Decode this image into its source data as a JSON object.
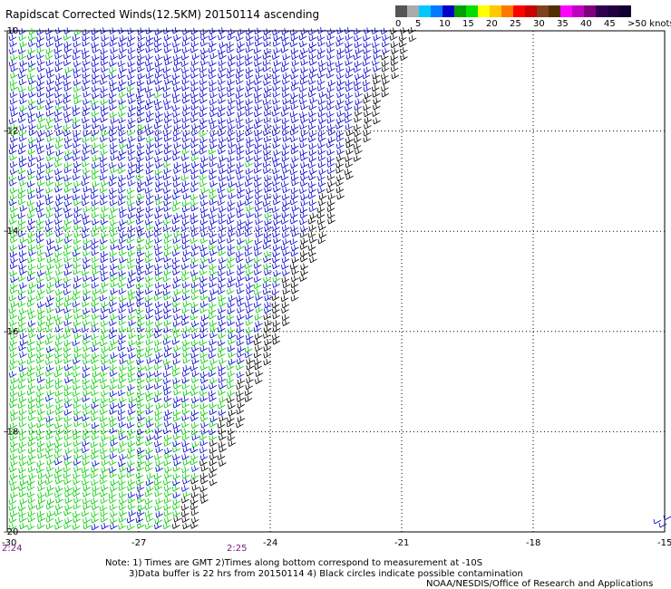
{
  "title": "Rapidscat Corrected Winds(12.5KM) 20150114 ascending",
  "colorbar": {
    "colors": [
      "#555555",
      "#aaaaaa",
      "#00c8ff",
      "#0078ff",
      "#0000c8",
      "#00a000",
      "#00e000",
      "#ffff00",
      "#ffc800",
      "#ff7800",
      "#ff0000",
      "#c80000",
      "#804020",
      "#503000",
      "#ff00ff",
      "#c000c0",
      "#800080",
      "#300050",
      "#200040",
      "#100030"
    ],
    "labels": [
      "0",
      "5",
      "10",
      "15",
      "20",
      "25",
      "30",
      "35",
      "40",
      "45",
      ">50 knots"
    ]
  },
  "map": {
    "lon_ticks": [
      "-30",
      "-27",
      "-24",
      "-21",
      "-18",
      "-15"
    ],
    "lat_ticks": [
      "-10",
      "-12",
      "-14",
      "-16",
      "-18",
      "-20"
    ],
    "lon_range": [
      -30,
      -15
    ],
    "lat_range": [
      -20,
      -10
    ],
    "wind_colors": {
      "slow": "#00cc00",
      "fast": "#0000cc",
      "edge": "#000000"
    }
  },
  "times": [
    "2:24",
    "2:25"
  ],
  "notes": {
    "line1": "Note: 1) Times are GMT 2)Times along bottom correspond to measurement at -10S",
    "line2": "3)Data buffer is 22 hrs from 20150114 4) Black circles indicate possible contamination",
    "credit": "NOAA/NESDIS/Office of Research and Applications"
  }
}
